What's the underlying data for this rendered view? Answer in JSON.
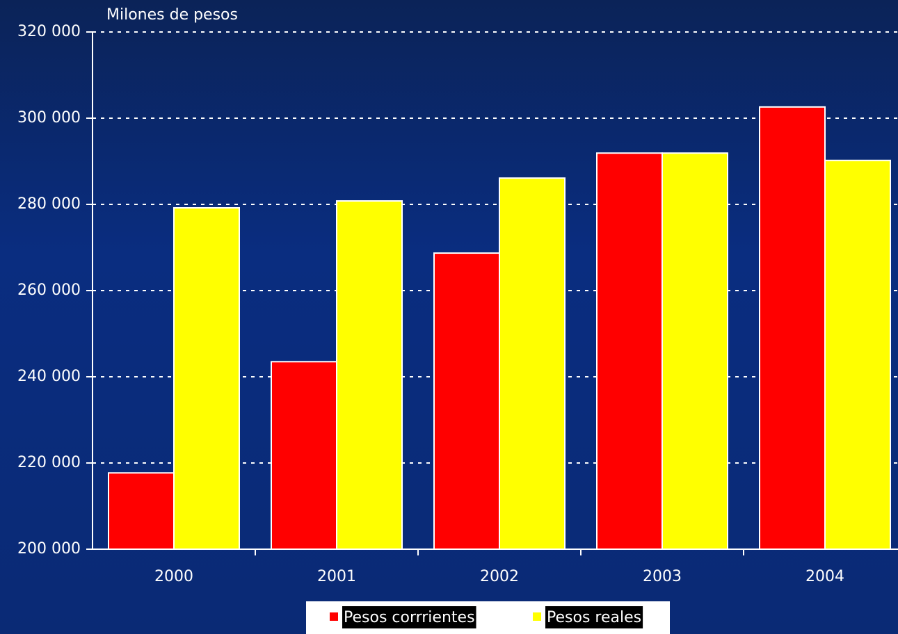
{
  "chart_data": {
    "type": "bar",
    "y_label": "Milones de pesos",
    "categories": [
      "2000",
      "2001",
      "2002",
      "2003",
      "2004"
    ],
    "series": [
      {
        "name": "Pesos corrrientes",
        "color": "#ff0000",
        "values": [
          217700,
          243500,
          268700,
          291900,
          302600
        ]
      },
      {
        "name": "Pesos reales",
        "color": "#ffff00",
        "values": [
          279200,
          280800,
          286100,
          291900,
          290200
        ]
      }
    ],
    "ylim": [
      200000,
      320000
    ],
    "yticks": [
      {
        "value": 200000,
        "label": "200 000"
      },
      {
        "value": 220000,
        "label": "220 000"
      },
      {
        "value": 240000,
        "label": "240 000"
      },
      {
        "value": 260000,
        "label": "260 000"
      },
      {
        "value": 280000,
        "label": "280 000"
      },
      {
        "value": 300000,
        "label": "300 000"
      },
      {
        "value": 320000,
        "label": "320 000"
      }
    ],
    "grid": true,
    "legend": "bottom"
  }
}
